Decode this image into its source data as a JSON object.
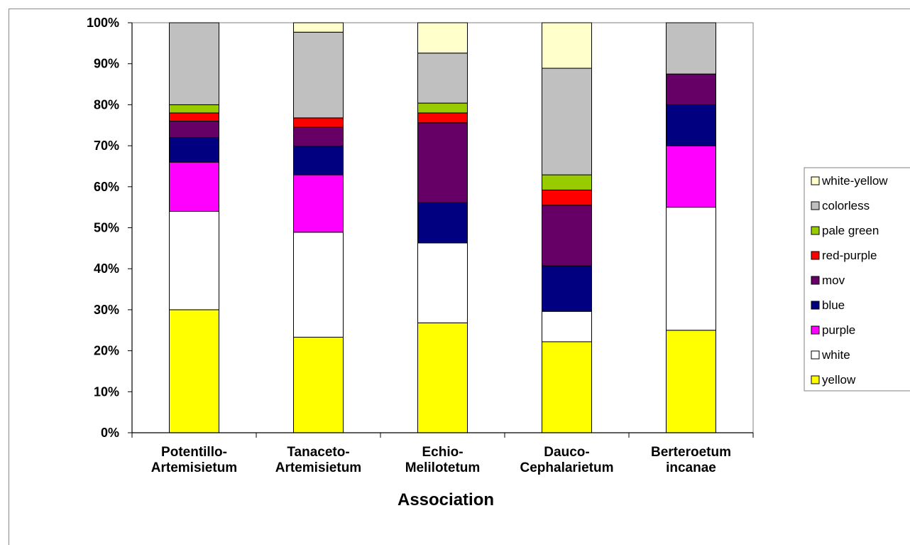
{
  "chart_data": {
    "type": "bar",
    "stacked": true,
    "percent": true,
    "xlabel": "Association",
    "ylabel": "",
    "ylim": [
      0,
      100
    ],
    "y_ticks": [
      "0%",
      "10%",
      "20%",
      "30%",
      "40%",
      "50%",
      "60%",
      "70%",
      "80%",
      "90%",
      "100%"
    ],
    "legend_position": "right",
    "categories": [
      [
        "Potentillo-",
        "Artemisietum"
      ],
      [
        "Tanaceto-",
        "Artemisietum"
      ],
      [
        "Echio-",
        "Melilotetum"
      ],
      [
        "Dauco-",
        "Cephalarietum"
      ],
      [
        "Berteroetum",
        "incanae"
      ]
    ],
    "series": [
      {
        "name": "yellow",
        "color": "#ffff00",
        "values": [
          30,
          23.3,
          26.8,
          22.2,
          25
        ]
      },
      {
        "name": "white",
        "color": "#ffffff",
        "values": [
          24,
          25.6,
          19.5,
          7.4,
          30
        ]
      },
      {
        "name": "purple",
        "color": "#ff00ff",
        "values": [
          12,
          14,
          0,
          0,
          15
        ]
      },
      {
        "name": "blue",
        "color": "#000080",
        "values": [
          6,
          7,
          9.8,
          11.1,
          10
        ]
      },
      {
        "name": "mov",
        "color": "#660066",
        "values": [
          4,
          4.6,
          19.5,
          14.8,
          7.5
        ]
      },
      {
        "name": "red-purple",
        "color": "#ff0000",
        "values": [
          2,
          2.3,
          2.4,
          3.7,
          0
        ]
      },
      {
        "name": "pale green",
        "color": "#99cc00",
        "values": [
          2,
          0,
          2.4,
          3.7,
          0
        ]
      },
      {
        "name": "colorless",
        "color": "#c0c0c0",
        "values": [
          20,
          20.9,
          12.2,
          26,
          12.5
        ]
      },
      {
        "name": "white-yellow",
        "color": "#ffffcc",
        "values": [
          0,
          2.3,
          7.4,
          11.1,
          0
        ]
      }
    ]
  }
}
